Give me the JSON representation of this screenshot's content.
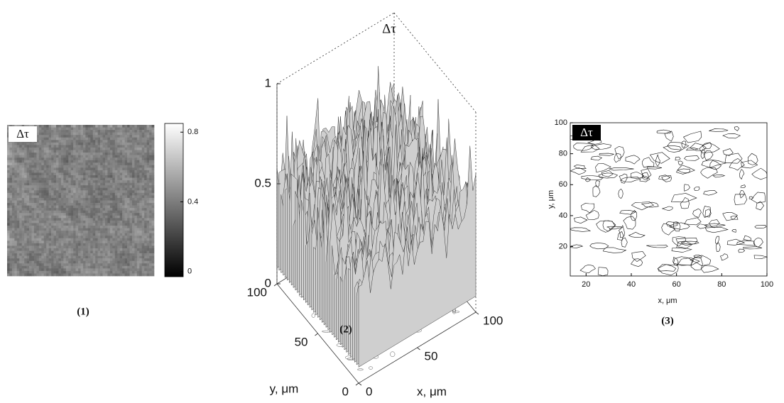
{
  "panels": [
    {
      "type": "heatmap",
      "label": "(1)",
      "symbol": "Δτ",
      "colorbar_lim": [
        -0.03,
        0.85
      ],
      "colorbar_ticks": [
        0,
        0.4,
        0.8
      ]
    },
    {
      "type": "surface",
      "label": "(2)",
      "symbol": "Δτ",
      "zlim": [
        0,
        1
      ],
      "zticks": [
        0,
        0.5,
        1
      ],
      "xlim": [
        0,
        100
      ],
      "xticks": [
        0,
        50,
        100
      ],
      "ylim": [
        0,
        100
      ],
      "yticks": [
        0,
        50,
        100
      ],
      "xlabel": "x, μm",
      "ylabel": "y, μm"
    },
    {
      "type": "contour",
      "label": "(3)",
      "symbol": "Δτ",
      "xlim": [
        13,
        100
      ],
      "xticks": [
        20,
        40,
        60,
        80,
        100
      ],
      "ylim": [
        1,
        100
      ],
      "yticks": [
        20,
        40,
        60,
        80,
        100
      ],
      "xlabel": "x, μm",
      "ylabel": "y, μm"
    }
  ]
}
